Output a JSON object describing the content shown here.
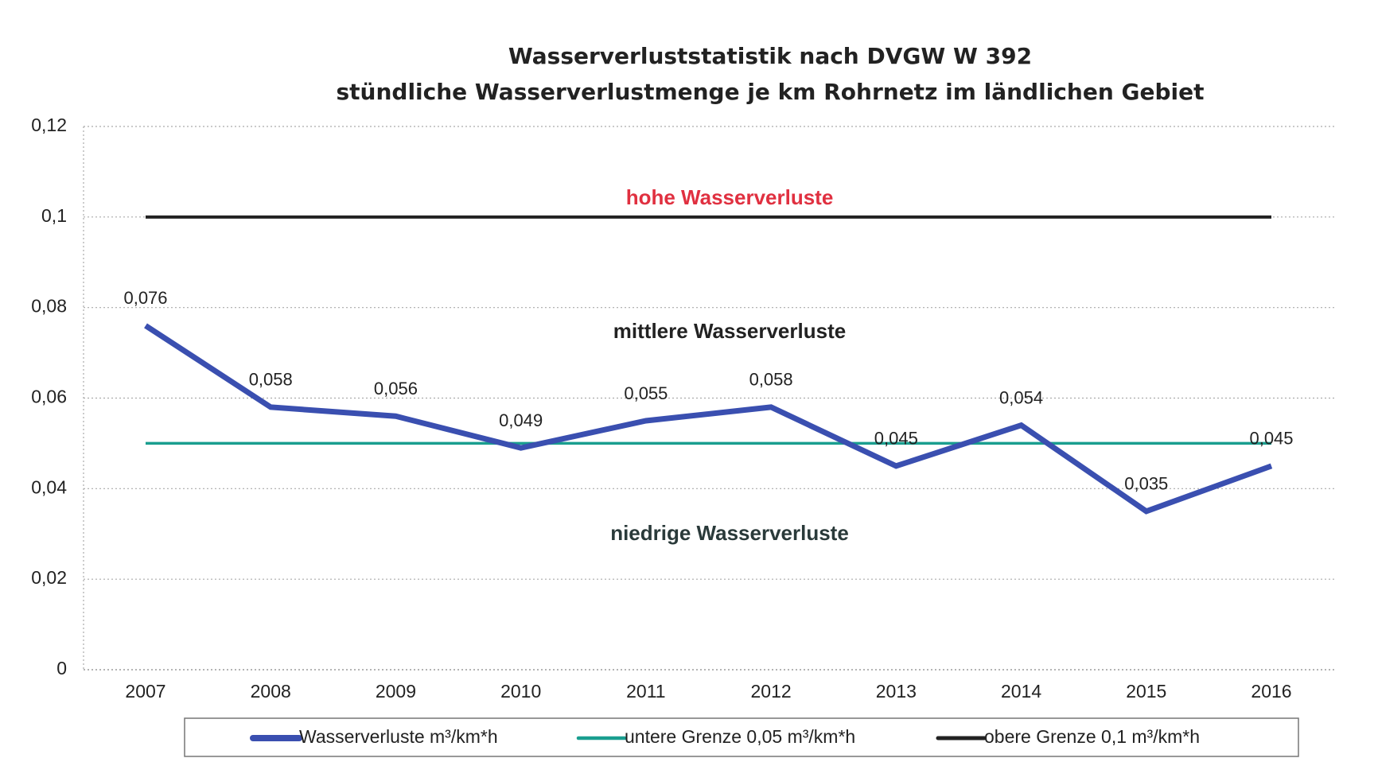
{
  "chart_data": {
    "type": "line",
    "title": "Wasserverluststatistik nach DVGW W 392",
    "subtitle": "stündliche Wasserverlustmenge je km Rohrnetz im ländlichen Gebiet",
    "categories": [
      "2007",
      "2008",
      "2009",
      "2010",
      "2011",
      "2012",
      "2013",
      "2014",
      "2015",
      "2016"
    ],
    "series": [
      {
        "name": "Wasserverluste m³/km*h",
        "color": "#3a4fb0",
        "values": [
          0.076,
          0.058,
          0.056,
          0.049,
          0.055,
          0.058,
          0.045,
          0.054,
          0.035,
          0.045
        ],
        "value_labels": [
          "0,076",
          "0,058",
          "0,056",
          "0,049",
          "0,055",
          "0,058",
          "0,045",
          "0,054",
          "0,035",
          "0,045"
        ]
      },
      {
        "name": "untere Grenze 0,05 m³/km*h",
        "color": "#1a9e8f",
        "values": [
          0.05,
          0.05,
          0.05,
          0.05,
          0.05,
          0.05,
          0.05,
          0.05,
          0.05,
          0.05
        ]
      },
      {
        "name": "obere Grenze 0,1 m³/km*h",
        "color": "#222222",
        "values": [
          0.1,
          0.1,
          0.1,
          0.1,
          0.1,
          0.1,
          0.1,
          0.1,
          0.1,
          0.1
        ]
      }
    ],
    "annotations": [
      {
        "text": "hohe Wasserverluste",
        "color": "#e03040"
      },
      {
        "text": "mittlere Wasserverluste",
        "color": "#222222"
      },
      {
        "text": "niedrige Wasserverluste",
        "color": "#2a3a3a"
      }
    ],
    "ylim": [
      0,
      0.12
    ],
    "yticks": [
      0,
      {
        "value": 0.02,
        "label": "0,02"
      },
      {
        "value": 0.04,
        "label": "0,04"
      },
      {
        "value": 0.06,
        "label": "0,06"
      },
      {
        "value": 0.08,
        "label": "0,08"
      },
      {
        "value": 0.1,
        "label": "0,1"
      },
      {
        "value": 0.12,
        "label": "0,12"
      }
    ],
    "grid": true
  }
}
